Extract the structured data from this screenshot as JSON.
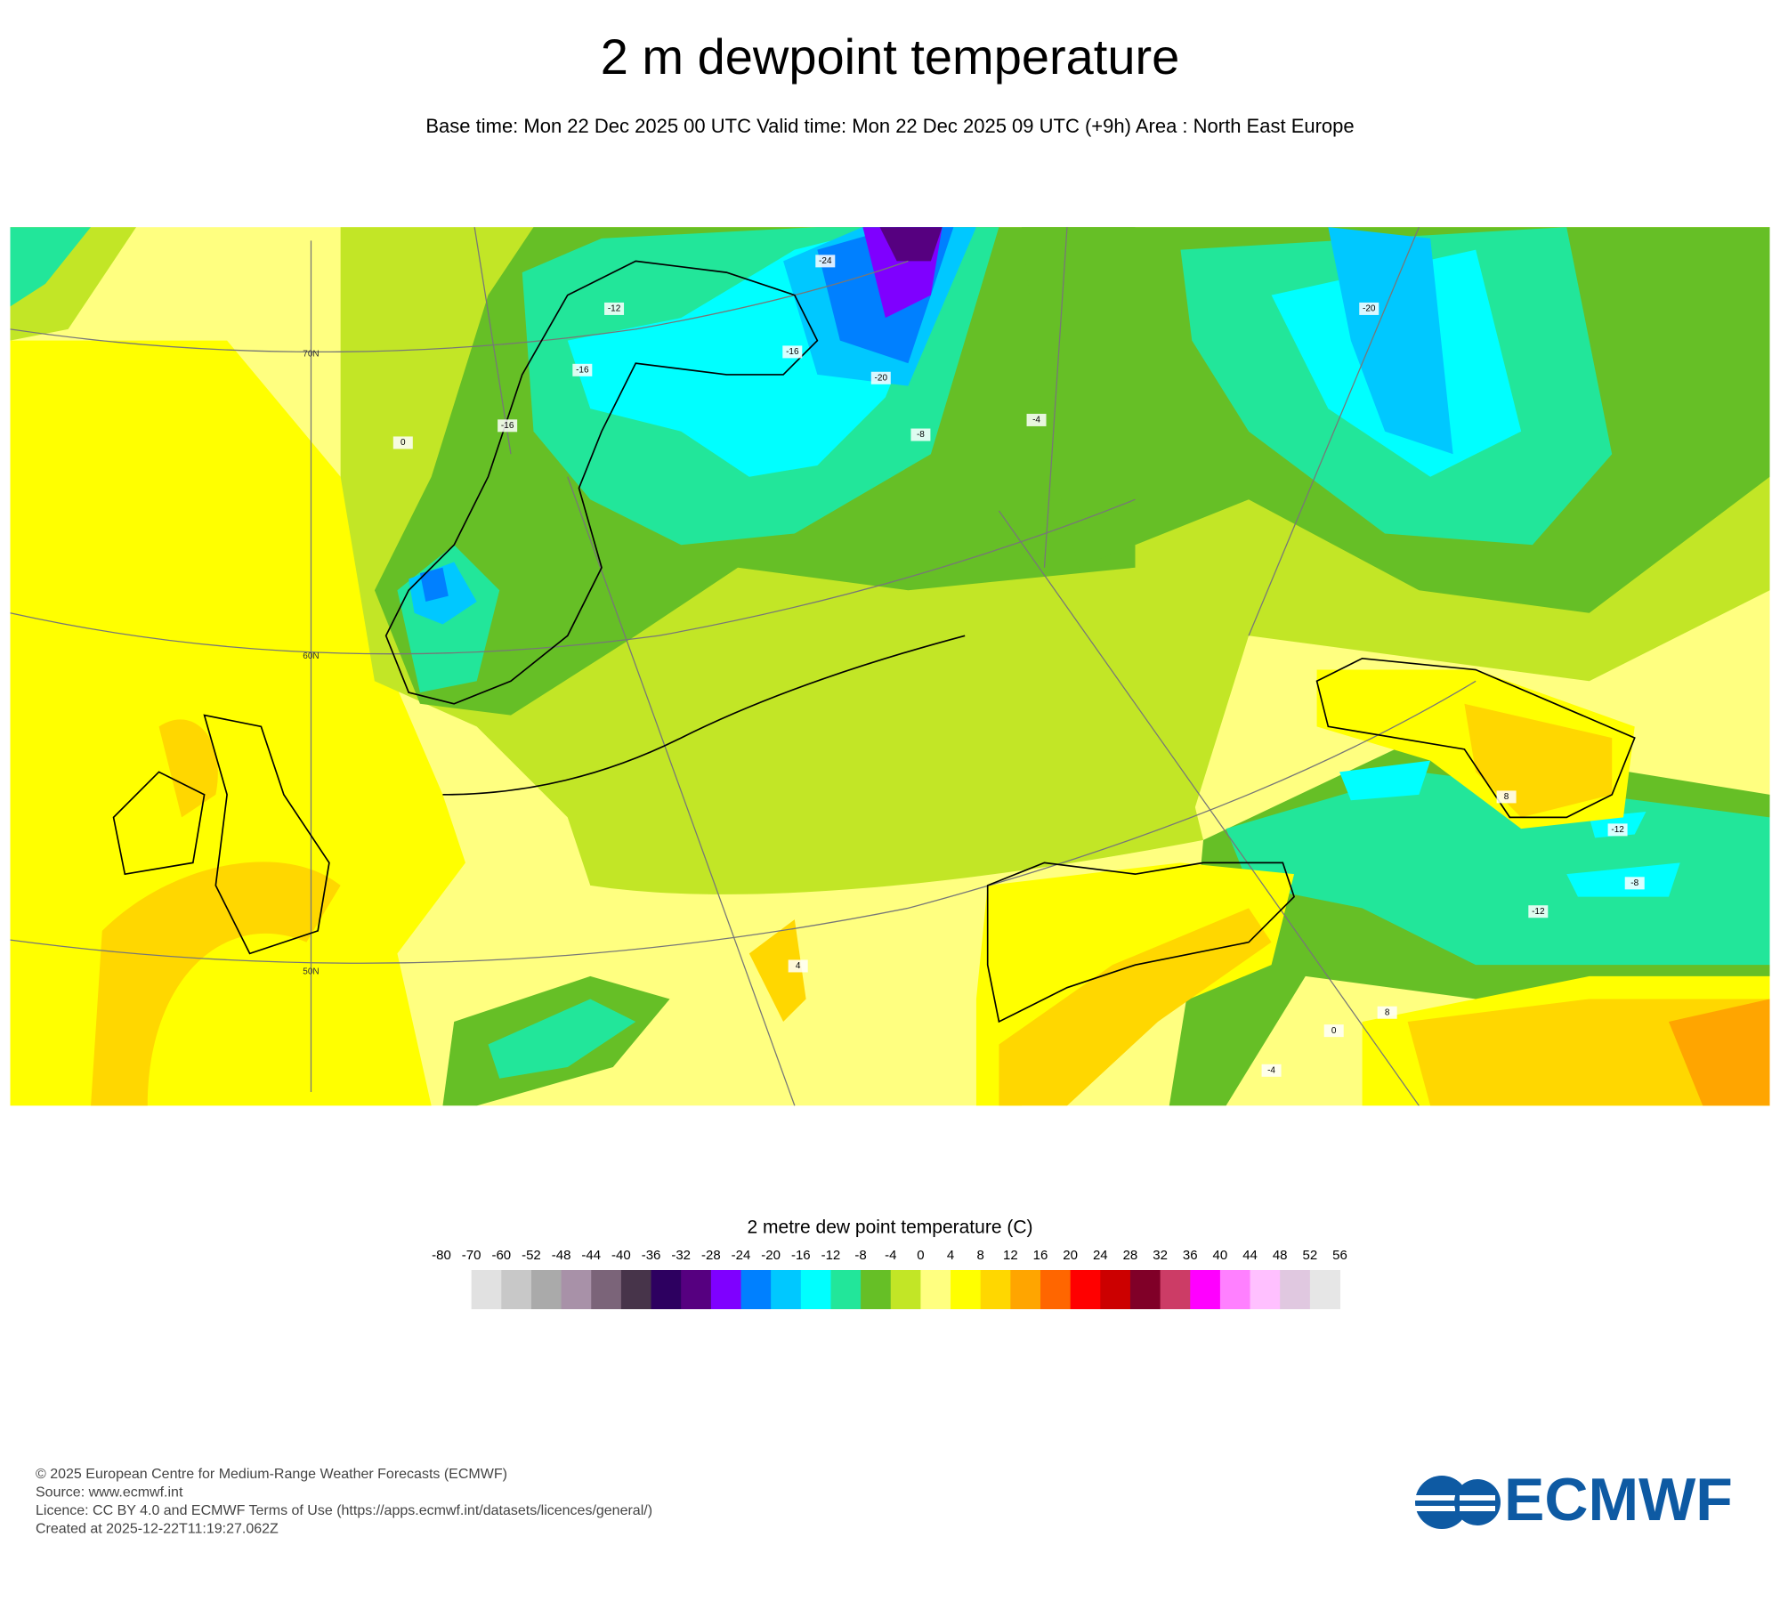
{
  "header": {
    "title": "2 m dewpoint temperature",
    "subtitle": "Base time: Mon 22 Dec 2025 00 UTC Valid time: Mon 22 Dec 2025 09 UTC (+9h) Area : North East Europe"
  },
  "map": {
    "latitude_labels": [
      "70N",
      "60N",
      "50N"
    ],
    "contour_labels": [
      "-24",
      "-20",
      "-16",
      "-12",
      "-16",
      "-8",
      "-4",
      "0",
      "-16",
      "-20",
      "-12",
      "-8",
      "-12",
      "-4",
      "4",
      "8",
      "0",
      "8"
    ]
  },
  "colorbar": {
    "title": "2 metre dew point temperature (C)",
    "levels": [
      -80,
      -70,
      -60,
      -52,
      -48,
      -44,
      -40,
      -36,
      -32,
      -28,
      -24,
      -20,
      -16,
      -12,
      -8,
      -4,
      0,
      4,
      8,
      12,
      16,
      20,
      24,
      28,
      32,
      36,
      40,
      44,
      48,
      52,
      56
    ],
    "colors": [
      "#ffffff",
      "#e1e1e1",
      "#c8c8c8",
      "#aaaaaa",
      "#a891a8",
      "#7b6479",
      "#47344a",
      "#2d0060",
      "#560080",
      "#7f00ff",
      "#0080ff",
      "#00c8ff",
      "#00ffff",
      "#22e69a",
      "#66bf26",
      "#c2e626",
      "#ffff80",
      "#ffff00",
      "#ffd700",
      "#ffa500",
      "#ff6600",
      "#ff0000",
      "#cc0000",
      "#800028",
      "#cc3c66",
      "#ff00ff",
      "#ff80ff",
      "#ffc0ff",
      "#e0c8e0",
      "#e6e6e6"
    ]
  },
  "footer": {
    "lines": [
      "© 2025 European Centre for Medium-Range Weather Forecasts (ECMWF)",
      "Source: www.ecmwf.int",
      "Licence: CC BY 4.0 and ECMWF Terms of Use (https://apps.ecmwf.int/datasets/licences/general/)",
      "Created at 2025-12-22T11:19:27.062Z"
    ],
    "logo": "ECMWF"
  }
}
